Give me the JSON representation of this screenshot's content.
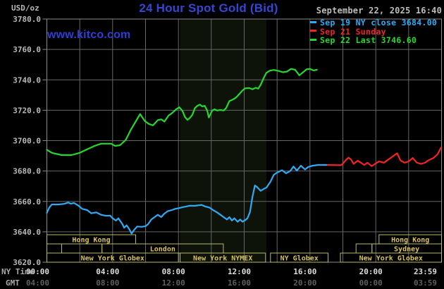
{
  "header": {
    "units_label": "USD/oz",
    "title": "24 Hour Spot Gold (Bid)",
    "watermark": "www.kitco.com",
    "timestamp": "September 22, 2025 16:40",
    "title_color": "#3546d2",
    "watermark_color": "#2c3fd6",
    "timestamp_color": "#bdbdbd"
  },
  "legend": [
    {
      "label": "Sep 19 NY close 3684.00",
      "color": "#2fabf5"
    },
    {
      "label": "Sep 21 Sunday",
      "color": "#f22424"
    },
    {
      "label": "Sep 22 Last 3746.60",
      "color": "#26d82e"
    }
  ],
  "sessions": {
    "box_color": "#b9b96a",
    "text_color": "#d8c25e",
    "rows": [
      {
        "boxes": [
          {
            "from": 0,
            "to": 5.4,
            "label": "Hong Kong"
          },
          {
            "from": 20.2,
            "to": 24,
            "label": "Hong Kong"
          }
        ]
      },
      {
        "boxes": [
          {
            "from": 0,
            "to": 0.9,
            "label": ""
          },
          {
            "from": 0.9,
            "to": 3.35,
            "label": ""
          },
          {
            "from": 3.35,
            "to": 10.73,
            "label": "London"
          },
          {
            "from": 18.8,
            "to": 19.77,
            "label": ""
          },
          {
            "from": 19.77,
            "to": 24,
            "label": "Sydney"
          }
        ]
      },
      {
        "boxes": [
          {
            "from": 0,
            "to": 8.0,
            "label": "New York Globex"
          },
          {
            "from": 8.1,
            "to": 13.3,
            "label": "New York NYMEX"
          },
          {
            "from": 13.6,
            "to": 17.1,
            "label": "NY Globex"
          },
          {
            "from": 17.85,
            "to": 24,
            "label": "New York Globex"
          }
        ]
      }
    ]
  },
  "chart_data": {
    "type": "line",
    "title": "24 Hour Spot Gold (Bid)",
    "grid": {
      "color": "#666666",
      "border_color": "#8a8a8a",
      "vertical_step_hours": 2
    },
    "shaded_band": {
      "from_hour": 8.1,
      "to_hour": 13.35,
      "color": "#0e130a"
    },
    "y_axis": {
      "unit": "USD/oz",
      "range": [
        3620,
        3780
      ],
      "tick_step": 20,
      "tick_labels": [
        "3780.0",
        "3760.0",
        "3740.0",
        "3720.0",
        "3700.0",
        "3680.0",
        "3660.0",
        "3640.0",
        "3620.0"
      ],
      "text_color": "#b8b8b8"
    },
    "x_axis": {
      "range_hours": [
        0,
        24
      ],
      "row1_name": "NY Time",
      "row2_name": "GMT",
      "row1_color": "#dcdcdc",
      "row2_color": "#5f5f5f",
      "name_color": "#a8a8a8",
      "ticks_row1": [
        {
          "t": 0,
          "text": "00:00"
        },
        {
          "t": 4,
          "text": "04:00"
        },
        {
          "t": 8,
          "text": "08:00"
        },
        {
          "t": 12,
          "text": "12:00"
        },
        {
          "t": 16,
          "text": "16:00"
        },
        {
          "t": 20,
          "text": "20:00"
        },
        {
          "t": 23.983,
          "text": "23:59"
        }
      ],
      "ticks_row2": [
        {
          "t": 0,
          "text": "04:00"
        },
        {
          "t": 4,
          "text": "08:00"
        },
        {
          "t": 8,
          "text": "12:00"
        },
        {
          "t": 12,
          "text": "16:00"
        },
        {
          "t": 16,
          "text": "20:00"
        },
        {
          "t": 20,
          "text": "00:00"
        },
        {
          "t": 23.983,
          "text": "03:59"
        }
      ]
    },
    "series": [
      {
        "name": "Sep 21 Sunday",
        "color": "#f22424",
        "points": [
          [
            16.8,
            3684
          ],
          [
            17.9,
            3683.8
          ],
          [
            18.05,
            3685.5
          ],
          [
            18.2,
            3687.5
          ],
          [
            18.35,
            3688.8
          ],
          [
            18.5,
            3687.5
          ],
          [
            18.65,
            3684.7
          ],
          [
            18.9,
            3686.8
          ],
          [
            19.1,
            3685.5
          ],
          [
            19.3,
            3684
          ],
          [
            19.5,
            3685.5
          ],
          [
            19.75,
            3683.2
          ],
          [
            20,
            3685
          ],
          [
            20.2,
            3686.3
          ],
          [
            20.5,
            3685.5
          ],
          [
            20.8,
            3687.8
          ],
          [
            21.1,
            3690.1
          ],
          [
            21.3,
            3691.7
          ],
          [
            21.5,
            3687
          ],
          [
            21.75,
            3685.5
          ],
          [
            22,
            3686.3
          ],
          [
            22.25,
            3688.6
          ],
          [
            22.5,
            3685.5
          ],
          [
            22.75,
            3684.7
          ],
          [
            23,
            3685.5
          ],
          [
            23.2,
            3687
          ],
          [
            23.5,
            3688.5
          ],
          [
            23.75,
            3690.9
          ],
          [
            23.97,
            3695.4
          ]
        ]
      },
      {
        "name": "Sep 19 NY close",
        "color": "#2fabf5",
        "points": [
          [
            0,
            3652.5
          ],
          [
            0.15,
            3656
          ],
          [
            0.3,
            3658
          ],
          [
            0.7,
            3658
          ],
          [
            1.05,
            3658.4
          ],
          [
            1.3,
            3659.3
          ],
          [
            1.45,
            3658.5
          ],
          [
            1.65,
            3659
          ],
          [
            1.9,
            3657.4
          ],
          [
            2.15,
            3655.1
          ],
          [
            2.45,
            3654.3
          ],
          [
            2.7,
            3652.2
          ],
          [
            3,
            3652.8
          ],
          [
            3.3,
            3651.2
          ],
          [
            3.6,
            3650.5
          ],
          [
            3.85,
            3650.7
          ],
          [
            4,
            3648.9
          ],
          [
            4.2,
            3647.4
          ],
          [
            4.35,
            3648.9
          ],
          [
            4.6,
            3645
          ],
          [
            4.7,
            3642.7
          ],
          [
            4.85,
            3644.3
          ],
          [
            5,
            3641.9
          ],
          [
            5.15,
            3638.9
          ],
          [
            5.3,
            3641.2
          ],
          [
            5.5,
            3643.5
          ],
          [
            5.75,
            3643.3
          ],
          [
            6,
            3643.7
          ],
          [
            6.15,
            3645
          ],
          [
            6.35,
            3648.1
          ],
          [
            6.55,
            3649.7
          ],
          [
            6.75,
            3651.2
          ],
          [
            6.95,
            3649.7
          ],
          [
            7.15,
            3652
          ],
          [
            7.35,
            3653.6
          ],
          [
            7.6,
            3654.3
          ],
          [
            7.8,
            3655.1
          ],
          [
            8.05,
            3655.6
          ],
          [
            8.25,
            3656.2
          ],
          [
            8.45,
            3656.6
          ],
          [
            8.7,
            3657.2
          ],
          [
            9,
            3657.1
          ],
          [
            9.4,
            3657.7
          ],
          [
            9.65,
            3656.6
          ],
          [
            9.9,
            3655.9
          ],
          [
            10.1,
            3654.3
          ],
          [
            10.35,
            3652.8
          ],
          [
            10.55,
            3651.2
          ],
          [
            10.75,
            3649.7
          ],
          [
            10.95,
            3648.1
          ],
          [
            11.1,
            3649.7
          ],
          [
            11.25,
            3647.4
          ],
          [
            11.4,
            3648.9
          ],
          [
            11.6,
            3646.6
          ],
          [
            11.75,
            3648.1
          ],
          [
            11.9,
            3646.6
          ],
          [
            12.05,
            3647.6
          ],
          [
            12.2,
            3649
          ],
          [
            12.35,
            3653
          ],
          [
            12.5,
            3663
          ],
          [
            12.65,
            3670.5
          ],
          [
            12.8,
            3669.3
          ],
          [
            13,
            3667
          ],
          [
            13.2,
            3668.3
          ],
          [
            13.35,
            3669
          ],
          [
            13.6,
            3673
          ],
          [
            13.8,
            3677.5
          ],
          [
            14,
            3679
          ],
          [
            14.3,
            3680.5
          ],
          [
            14.55,
            3678.5
          ],
          [
            14.8,
            3680
          ],
          [
            15,
            3683
          ],
          [
            15.2,
            3680.3
          ],
          [
            15.45,
            3683.5
          ],
          [
            15.7,
            3681
          ],
          [
            15.9,
            3682.7
          ],
          [
            16.15,
            3683.5
          ],
          [
            16.5,
            3684
          ],
          [
            17,
            3684
          ]
        ]
      },
      {
        "name": "Sep 22 Last",
        "color": "#26d82e",
        "points": [
          [
            0,
            3694
          ],
          [
            0.3,
            3692
          ],
          [
            0.9,
            3690.5
          ],
          [
            1.5,
            3690.5
          ],
          [
            2,
            3692
          ],
          [
            2.4,
            3694
          ],
          [
            2.9,
            3696.5
          ],
          [
            3.3,
            3698
          ],
          [
            3.9,
            3698
          ],
          [
            4.15,
            3696.5
          ],
          [
            4.45,
            3697
          ],
          [
            4.8,
            3700.5
          ],
          [
            5.1,
            3707
          ],
          [
            5.45,
            3713.5
          ],
          [
            5.67,
            3717.5
          ],
          [
            5.95,
            3713
          ],
          [
            6.2,
            3711
          ],
          [
            6.45,
            3710
          ],
          [
            6.75,
            3713.5
          ],
          [
            6.95,
            3714
          ],
          [
            7.15,
            3712.5
          ],
          [
            7.4,
            3716.5
          ],
          [
            7.6,
            3718
          ],
          [
            7.85,
            3720.5
          ],
          [
            8.05,
            3722
          ],
          [
            8.25,
            3719.5
          ],
          [
            8.4,
            3715.5
          ],
          [
            8.55,
            3713.7
          ],
          [
            8.7,
            3715
          ],
          [
            8.85,
            3717
          ],
          [
            9,
            3721.4
          ],
          [
            9.15,
            3722.9
          ],
          [
            9.3,
            3723.7
          ],
          [
            9.45,
            3722.5
          ],
          [
            9.6,
            3722.9
          ],
          [
            9.75,
            3719.8
          ],
          [
            9.85,
            3715.2
          ],
          [
            9.95,
            3717.5
          ],
          [
            10.05,
            3719.8
          ],
          [
            10.2,
            3720.6
          ],
          [
            10.35,
            3719.8
          ],
          [
            10.55,
            3720.2
          ],
          [
            10.75,
            3719.8
          ],
          [
            10.9,
            3721.4
          ],
          [
            11.1,
            3726
          ],
          [
            11.3,
            3727
          ],
          [
            11.5,
            3728.3
          ],
          [
            11.7,
            3730.6
          ],
          [
            11.9,
            3733
          ],
          [
            12.05,
            3734.4
          ],
          [
            12.3,
            3734.6
          ],
          [
            12.5,
            3733.8
          ],
          [
            12.7,
            3734.8
          ],
          [
            12.85,
            3734.2
          ],
          [
            13,
            3736.7
          ],
          [
            13.2,
            3741.5
          ],
          [
            13.35,
            3744.6
          ],
          [
            13.55,
            3746
          ],
          [
            13.8,
            3746.5
          ],
          [
            14.1,
            3745.8
          ],
          [
            14.35,
            3745
          ],
          [
            14.6,
            3745.4
          ],
          [
            14.85,
            3747.2
          ],
          [
            15.1,
            3746.6
          ],
          [
            15.35,
            3743
          ],
          [
            15.55,
            3744.7
          ],
          [
            15.8,
            3747
          ],
          [
            16,
            3747.2
          ],
          [
            16.2,
            3746.2
          ],
          [
            16.42,
            3746.6
          ]
        ]
      }
    ]
  }
}
